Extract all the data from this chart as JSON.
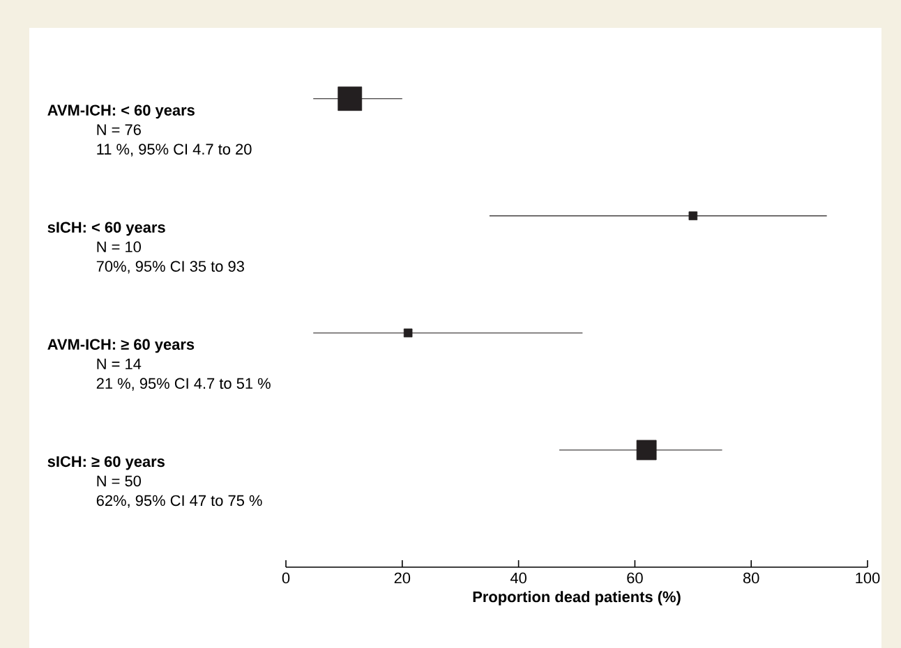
{
  "chart_data": {
    "type": "bubble",
    "orientation": "horizontal",
    "xlabel": "Proportion dead patients (%)",
    "categories": [
      "AVM-ICH: < 60 years",
      "sICH: < 60 years",
      "AVM-ICH: ≥ 60 years",
      "sICH: ≥ 60 years"
    ],
    "values": [
      11,
      70,
      21,
      62
    ],
    "errors": [
      [
        4.7,
        20
      ],
      [
        35,
        93
      ],
      [
        4.7,
        51
      ],
      [
        47,
        75
      ]
    ],
    "sizes": [
      1,
      0.12,
      0.12,
      0.68
    ],
    "color": "#231f20",
    "marker": "square",
    "xlim": [
      0,
      100
    ],
    "xticks": [
      0,
      20,
      40,
      60,
      80,
      100
    ],
    "annotations": [
      "N = 76",
      "11 %, 95% CI 4.7 to 20",
      "N = 10",
      "70%, 95% CI 35 to 93",
      "N = 14",
      "21 %, 95% CI 4.7 to 51 %",
      "N = 50",
      "62%, 95% CI 47 to 75 %"
    ]
  }
}
